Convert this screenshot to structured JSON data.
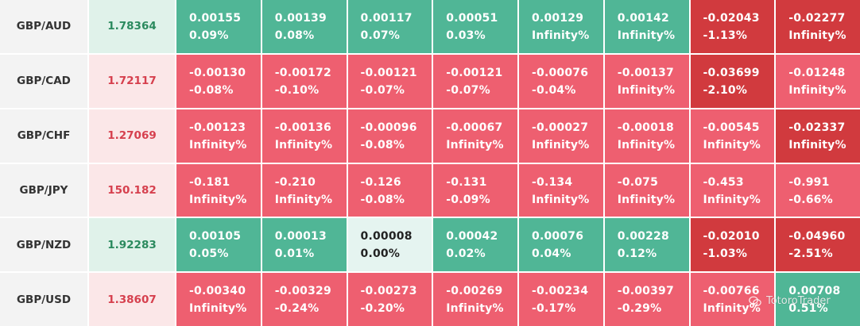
{
  "rows": [
    {
      "pair": "GBP/AUD",
      "price": "1.78364",
      "price_dir": "up",
      "cells": [
        {
          "value": "0.00155",
          "pct": "0.09%",
          "tone": "pos"
        },
        {
          "value": "0.00139",
          "pct": "0.08%",
          "tone": "pos"
        },
        {
          "value": "0.00117",
          "pct": "0.07%",
          "tone": "pos"
        },
        {
          "value": "0.00051",
          "pct": "0.03%",
          "tone": "pos"
        },
        {
          "value": "0.00129",
          "pct": "Infinity%",
          "tone": "pos"
        },
        {
          "value": "0.00142",
          "pct": "Infinity%",
          "tone": "pos"
        },
        {
          "value": "-0.02043",
          "pct": "-1.13%",
          "tone": "negd"
        },
        {
          "value": "-0.02277",
          "pct": "Infinity%",
          "tone": "negd"
        }
      ]
    },
    {
      "pair": "GBP/CAD",
      "price": "1.72117",
      "price_dir": "down",
      "cells": [
        {
          "value": "-0.00130",
          "pct": "-0.08%",
          "tone": "neg"
        },
        {
          "value": "-0.00172",
          "pct": "-0.10%",
          "tone": "neg"
        },
        {
          "value": "-0.00121",
          "pct": "-0.07%",
          "tone": "neg"
        },
        {
          "value": "-0.00121",
          "pct": "-0.07%",
          "tone": "neg"
        },
        {
          "value": "-0.00076",
          "pct": "-0.04%",
          "tone": "neg"
        },
        {
          "value": "-0.00137",
          "pct": "Infinity%",
          "tone": "neg"
        },
        {
          "value": "-0.03699",
          "pct": "-2.10%",
          "tone": "negd"
        },
        {
          "value": "-0.01248",
          "pct": "Infinity%",
          "tone": "neg"
        }
      ]
    },
    {
      "pair": "GBP/CHF",
      "price": "1.27069",
      "price_dir": "down",
      "cells": [
        {
          "value": "-0.00123",
          "pct": "Infinity%",
          "tone": "neg"
        },
        {
          "value": "-0.00136",
          "pct": "Infinity%",
          "tone": "neg"
        },
        {
          "value": "-0.00096",
          "pct": "-0.08%",
          "tone": "neg"
        },
        {
          "value": "-0.00067",
          "pct": "Infinity%",
          "tone": "neg"
        },
        {
          "value": "-0.00027",
          "pct": "Infinity%",
          "tone": "neg"
        },
        {
          "value": "-0.00018",
          "pct": "Infinity%",
          "tone": "neg"
        },
        {
          "value": "-0.00545",
          "pct": "Infinity%",
          "tone": "neg"
        },
        {
          "value": "-0.02337",
          "pct": "Infinity%",
          "tone": "negd"
        }
      ]
    },
    {
      "pair": "GBP/JPY",
      "price": "150.182",
      "price_dir": "down",
      "cells": [
        {
          "value": "-0.181",
          "pct": "Infinity%",
          "tone": "neg"
        },
        {
          "value": "-0.210",
          "pct": "Infinity%",
          "tone": "neg"
        },
        {
          "value": "-0.126",
          "pct": "-0.08%",
          "tone": "neg"
        },
        {
          "value": "-0.131",
          "pct": "-0.09%",
          "tone": "neg"
        },
        {
          "value": "-0.134",
          "pct": "Infinity%",
          "tone": "neg"
        },
        {
          "value": "-0.075",
          "pct": "Infinity%",
          "tone": "neg"
        },
        {
          "value": "-0.453",
          "pct": "Infinity%",
          "tone": "neg"
        },
        {
          "value": "-0.991",
          "pct": "-0.66%",
          "tone": "neg"
        }
      ]
    },
    {
      "pair": "GBP/NZD",
      "price": "1.92283",
      "price_dir": "up",
      "cells": [
        {
          "value": "0.00105",
          "pct": "0.05%",
          "tone": "pos"
        },
        {
          "value": "0.00013",
          "pct": "0.01%",
          "tone": "pos"
        },
        {
          "value": "0.00008",
          "pct": "0.00%",
          "tone": "zero"
        },
        {
          "value": "0.00042",
          "pct": "0.02%",
          "tone": "pos"
        },
        {
          "value": "0.00076",
          "pct": "0.04%",
          "tone": "pos"
        },
        {
          "value": "0.00228",
          "pct": "0.12%",
          "tone": "pos"
        },
        {
          "value": "-0.02010",
          "pct": "-1.03%",
          "tone": "negd"
        },
        {
          "value": "-0.04960",
          "pct": "-2.51%",
          "tone": "negd"
        }
      ]
    },
    {
      "pair": "GBP/USD",
      "price": "1.38607",
      "price_dir": "down",
      "cells": [
        {
          "value": "-0.00340",
          "pct": "Infinity%",
          "tone": "neg"
        },
        {
          "value": "-0.00329",
          "pct": "-0.24%",
          "tone": "neg"
        },
        {
          "value": "-0.00273",
          "pct": "-0.20%",
          "tone": "neg"
        },
        {
          "value": "-0.00269",
          "pct": "Infinity%",
          "tone": "neg"
        },
        {
          "value": "-0.00234",
          "pct": "-0.17%",
          "tone": "neg"
        },
        {
          "value": "-0.00397",
          "pct": "-0.29%",
          "tone": "neg"
        },
        {
          "value": "-0.00766",
          "pct": "Infinity%",
          "tone": "neg"
        },
        {
          "value": "0.00708",
          "pct": "0.51%",
          "tone": "pos"
        }
      ]
    }
  ],
  "watermark": {
    "text": "TotoroTrader",
    "icon": "wechat-icon"
  },
  "colors": {
    "positive": "#50b696",
    "negative": "#ee5f70",
    "negative_strong": "#d13a3e",
    "neutral": "#e5f4f0",
    "price_up_text": "#2b8a5e",
    "price_down_text": "#d6404e",
    "pair_bg": "#f3f3f3"
  }
}
